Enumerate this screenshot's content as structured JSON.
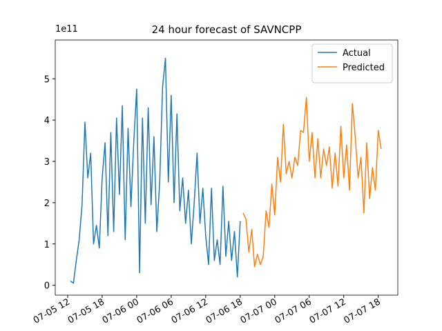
{
  "chart_data": {
    "type": "line",
    "title": "24 hour forecast of SAVNCPP",
    "y_scale_label": "1e11",
    "legend": "upper right",
    "grid": false,
    "xlim": [
      9.84,
      69.4
    ],
    "ylim": [
      -0.24,
      5.94
    ],
    "xticks": [
      {
        "value": 12,
        "label": "07-05 12"
      },
      {
        "value": 18,
        "label": "07-05 18"
      },
      {
        "value": 24,
        "label": "07-06 00"
      },
      {
        "value": 30,
        "label": "07-06 06"
      },
      {
        "value": 36,
        "label": "07-06 12"
      },
      {
        "value": 42,
        "label": "07-06 18"
      },
      {
        "value": 48,
        "label": "07-07 00"
      },
      {
        "value": 54,
        "label": "07-07 06"
      },
      {
        "value": 60,
        "label": "07-07 12"
      },
      {
        "value": 66,
        "label": "07-07 18"
      }
    ],
    "yticks": [
      0,
      1,
      2,
      3,
      4,
      5
    ],
    "series": [
      {
        "name": "Actual",
        "color": "#1f77b4",
        "x": [
          12.5,
          13,
          13.5,
          14,
          14.5,
          15,
          15.5,
          16,
          16.5,
          17,
          17.5,
          18,
          18.5,
          19,
          19.5,
          20,
          20.5,
          21,
          21.5,
          22,
          22.5,
          23,
          23.5,
          24,
          24.5,
          25,
          25.5,
          26,
          26.5,
          27,
          27.5,
          28,
          28.5,
          29,
          29.5,
          30,
          30.5,
          31,
          31.5,
          32,
          32.5,
          33,
          33.5,
          34,
          34.5,
          35,
          35.5,
          36,
          36.5,
          37,
          37.5,
          38,
          38.5,
          39,
          39.5,
          40,
          40.5,
          41,
          41.5,
          42
        ],
        "values": [
          0.1,
          0.05,
          0.6,
          1.1,
          1.95,
          3.95,
          2.6,
          3.2,
          1.0,
          1.45,
          0.9,
          2.6,
          3.45,
          1.2,
          3.7,
          1.3,
          4.05,
          2.2,
          4.35,
          1.1,
          3.8,
          1.9,
          3.5,
          4.75,
          0.3,
          4.05,
          1.5,
          4.3,
          1.95,
          3.6,
          1.3,
          2.5,
          4.8,
          5.5,
          2.5,
          4.6,
          2.0,
          4.15,
          1.8,
          2.6,
          1.5,
          2.3,
          1.0,
          2.0,
          3.2,
          1.5,
          2.35,
          1.2,
          0.5,
          2.35,
          0.6,
          1.1,
          0.5,
          2.4,
          0.7,
          1.55,
          0.6,
          1.3,
          0.2,
          1.55
        ]
      },
      {
        "name": "Predicted",
        "color": "#ff7f0e",
        "x": [
          42.5,
          43,
          43.5,
          44,
          44.5,
          45,
          45.5,
          46,
          46.5,
          47,
          47.5,
          48,
          48.5,
          49,
          49.5,
          50,
          50.5,
          51,
          51.5,
          52,
          52.5,
          53,
          53.5,
          54,
          54.5,
          55,
          55.5,
          56,
          56.5,
          57,
          57.5,
          58,
          58.5,
          59,
          59.5,
          60,
          60.5,
          61,
          61.5,
          62,
          62.5,
          63,
          63.5,
          64,
          64.5,
          65,
          65.5,
          66,
          66.5
        ],
        "values": [
          1.75,
          1.6,
          0.8,
          1.35,
          0.45,
          0.75,
          0.5,
          0.7,
          1.8,
          1.4,
          2.45,
          1.7,
          3.1,
          2.5,
          3.9,
          2.7,
          3.0,
          2.6,
          3.1,
          2.9,
          3.75,
          3.7,
          4.55,
          3.0,
          3.7,
          2.6,
          3.55,
          2.6,
          3.3,
          2.9,
          3.35,
          2.35,
          3.2,
          2.4,
          3.85,
          2.6,
          3.4,
          2.3,
          4.4,
          3.6,
          2.6,
          3.1,
          1.75,
          3.45,
          2.1,
          2.85,
          2.3,
          3.75,
          3.3
        ]
      }
    ]
  }
}
